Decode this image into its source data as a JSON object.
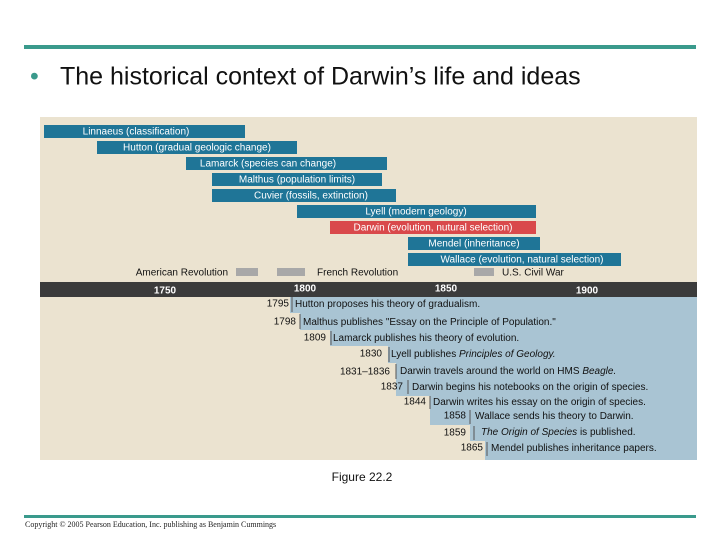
{
  "title": "The historical context of Darwin’s life and ideas",
  "figure": {
    "lifespans": [
      "Linnaeus (classification)",
      "Hutton (gradual geologic change)",
      "Lamarck (species can change)",
      "Malthus (population limits)",
      "Cuvier (fossils, extinction)",
      "Lyell (modern geology)",
      "Darwin (evolution, nutural selection)",
      "Mendel (inheritance)",
      "Wallace (evolution, natural selection)"
    ],
    "revolutions": [
      "American Revolution",
      "French Revolution",
      "U.S. Civil War"
    ],
    "axis_labels": [
      "1750",
      "1800",
      "1850",
      "1900"
    ],
    "events": [
      {
        "year": "1795",
        "text": [
          "Hutton proposes his theory of gradualism."
        ]
      },
      {
        "year": "1798",
        "text": [
          "Malthus publishes \"Essay on the Principle of Population.\""
        ]
      },
      {
        "year": "1809",
        "text": [
          "Lamarck publishes his theory of evolution."
        ]
      },
      {
        "year": "1830",
        "text": [
          "Lyell publishes ",
          "Principles of Geology."
        ]
      },
      {
        "year": "1831–1836",
        "text": [
          "Darwin travels around the world on HMS ",
          "Beagle."
        ]
      },
      {
        "year": "1837",
        "text": [
          "Darwin begins his notebooks on the origin of species."
        ]
      },
      {
        "year": "1844",
        "text": [
          "Darwin writes his essay on the origin of species."
        ]
      },
      {
        "year": "1858",
        "text": [
          "Wallace sends his theory to Darwin."
        ]
      },
      {
        "year": "1859",
        "text": [
          "The Origin of Species",
          " is published."
        ]
      },
      {
        "year": "1865",
        "text": [
          "Mendel publishes inheritance papers."
        ]
      }
    ],
    "caption": "Figure 22.2"
  },
  "footer": "Copyright © 2005 Pearson Education, Inc. publishing as Benjamin Cummings"
}
